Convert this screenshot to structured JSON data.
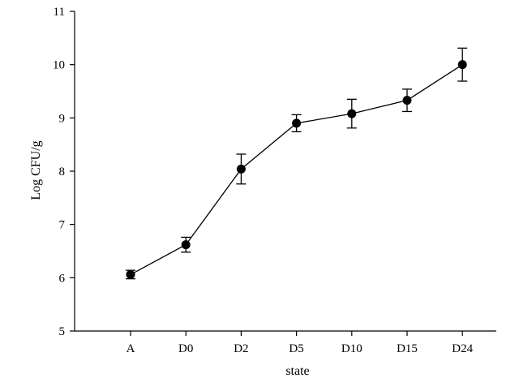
{
  "chart_data": {
    "type": "line",
    "title": "",
    "xlabel": "state",
    "ylabel": "Log CFU/g",
    "ylim": [
      5,
      11
    ],
    "yticks": [
      5,
      6,
      7,
      8,
      9,
      10,
      11
    ],
    "grid": false,
    "categories": [
      "A",
      "D0",
      "D2",
      "D5",
      "D10",
      "D15",
      "D24"
    ],
    "series": [
      {
        "values": [
          6.06,
          6.62,
          8.04,
          8.9,
          9.08,
          9.33,
          10.0
        ],
        "error": [
          0.08,
          0.14,
          0.28,
          0.16,
          0.27,
          0.21,
          0.31
        ]
      }
    ],
    "marker_color": "#000000",
    "line_color": "#000000"
  }
}
